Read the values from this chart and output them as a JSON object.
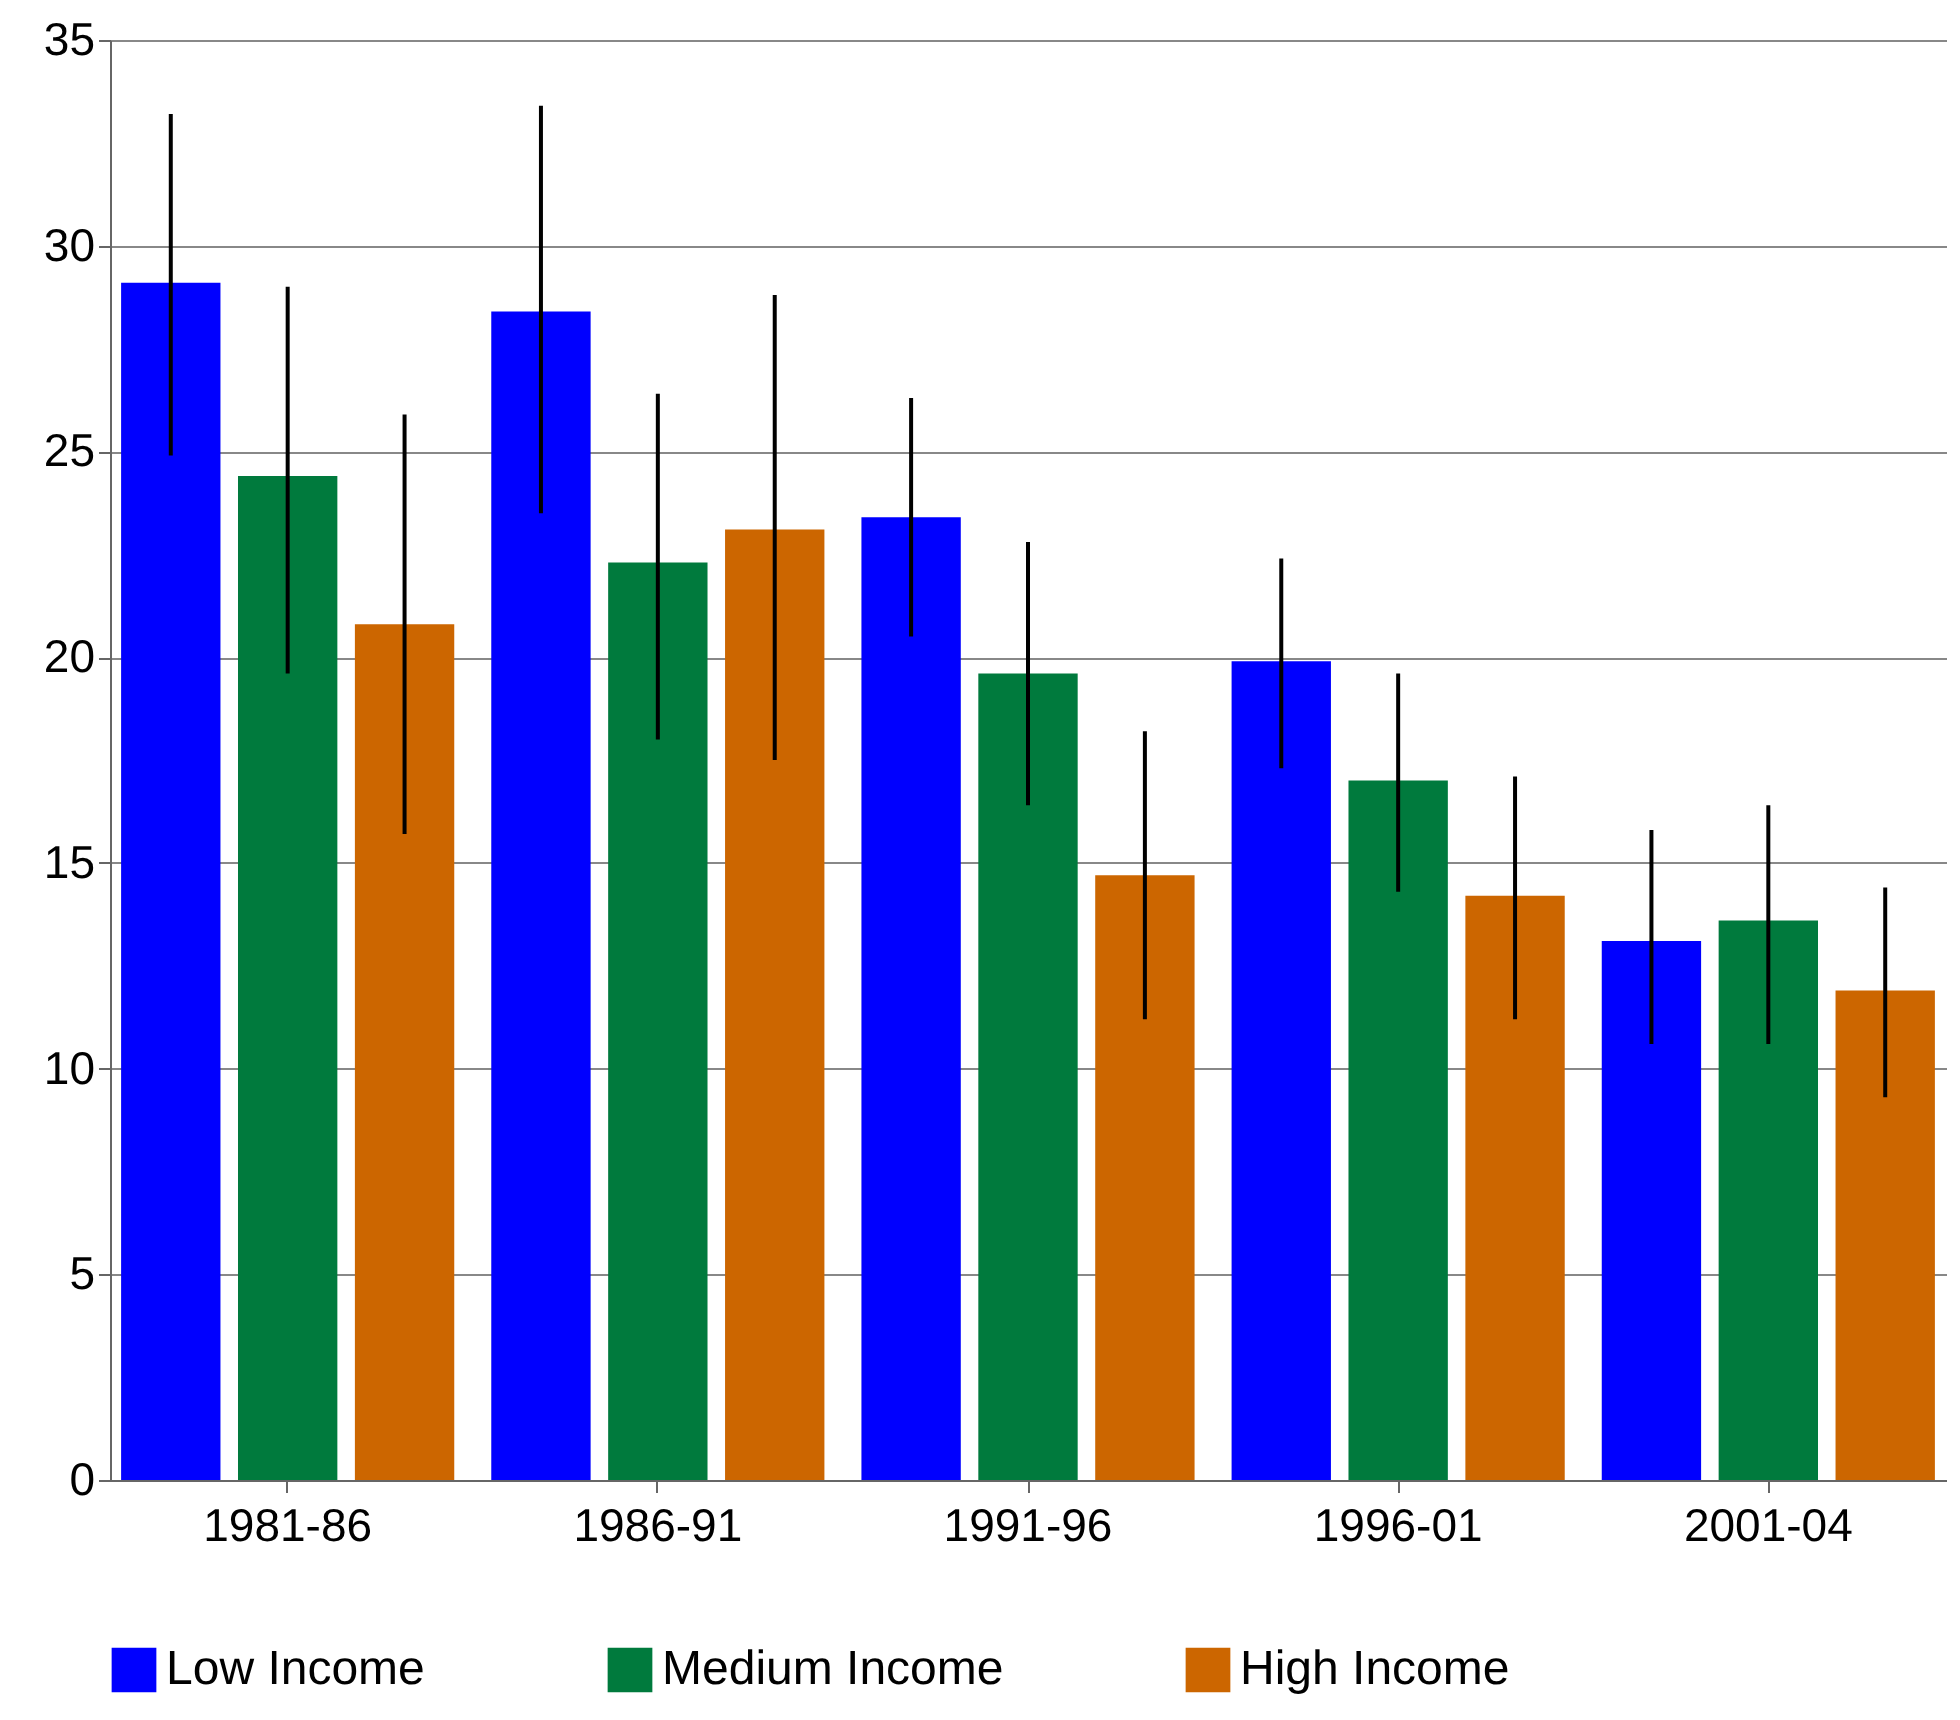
{
  "chart_data": {
    "type": "bar",
    "categories": [
      "1981-86",
      "1986-91",
      "1991-96",
      "1996-01",
      "2001-04"
    ],
    "series": [
      {
        "name": "Low Income",
        "color": "#0000ff",
        "values": [
          29.1,
          28.4,
          23.4,
          19.9,
          13.1
        ],
        "errors": [
          [
            24.9,
            33.2
          ],
          [
            23.5,
            33.4
          ],
          [
            20.5,
            26.3
          ],
          [
            17.3,
            22.4
          ],
          [
            10.6,
            15.8
          ]
        ]
      },
      {
        "name": "Medium Income",
        "color": "#007a3d",
        "values": [
          24.4,
          22.3,
          19.6,
          17.0,
          13.6
        ],
        "errors": [
          [
            19.6,
            29.0
          ],
          [
            18.0,
            26.4
          ],
          [
            16.4,
            22.8
          ],
          [
            14.3,
            19.6
          ],
          [
            10.6,
            16.4
          ]
        ]
      },
      {
        "name": "High Income",
        "color": "#cc6600",
        "values": [
          20.8,
          23.1,
          14.7,
          14.2,
          11.9
        ],
        "errors": [
          [
            15.7,
            25.9
          ],
          [
            17.5,
            28.8
          ],
          [
            11.2,
            18.2
          ],
          [
            11.2,
            17.1
          ],
          [
            9.3,
            14.4
          ]
        ]
      }
    ],
    "ylim": [
      0,
      35
    ],
    "yticks": [
      0,
      5,
      10,
      15,
      20,
      25,
      30,
      35
    ],
    "grid": "y",
    "legend": "bottom"
  }
}
